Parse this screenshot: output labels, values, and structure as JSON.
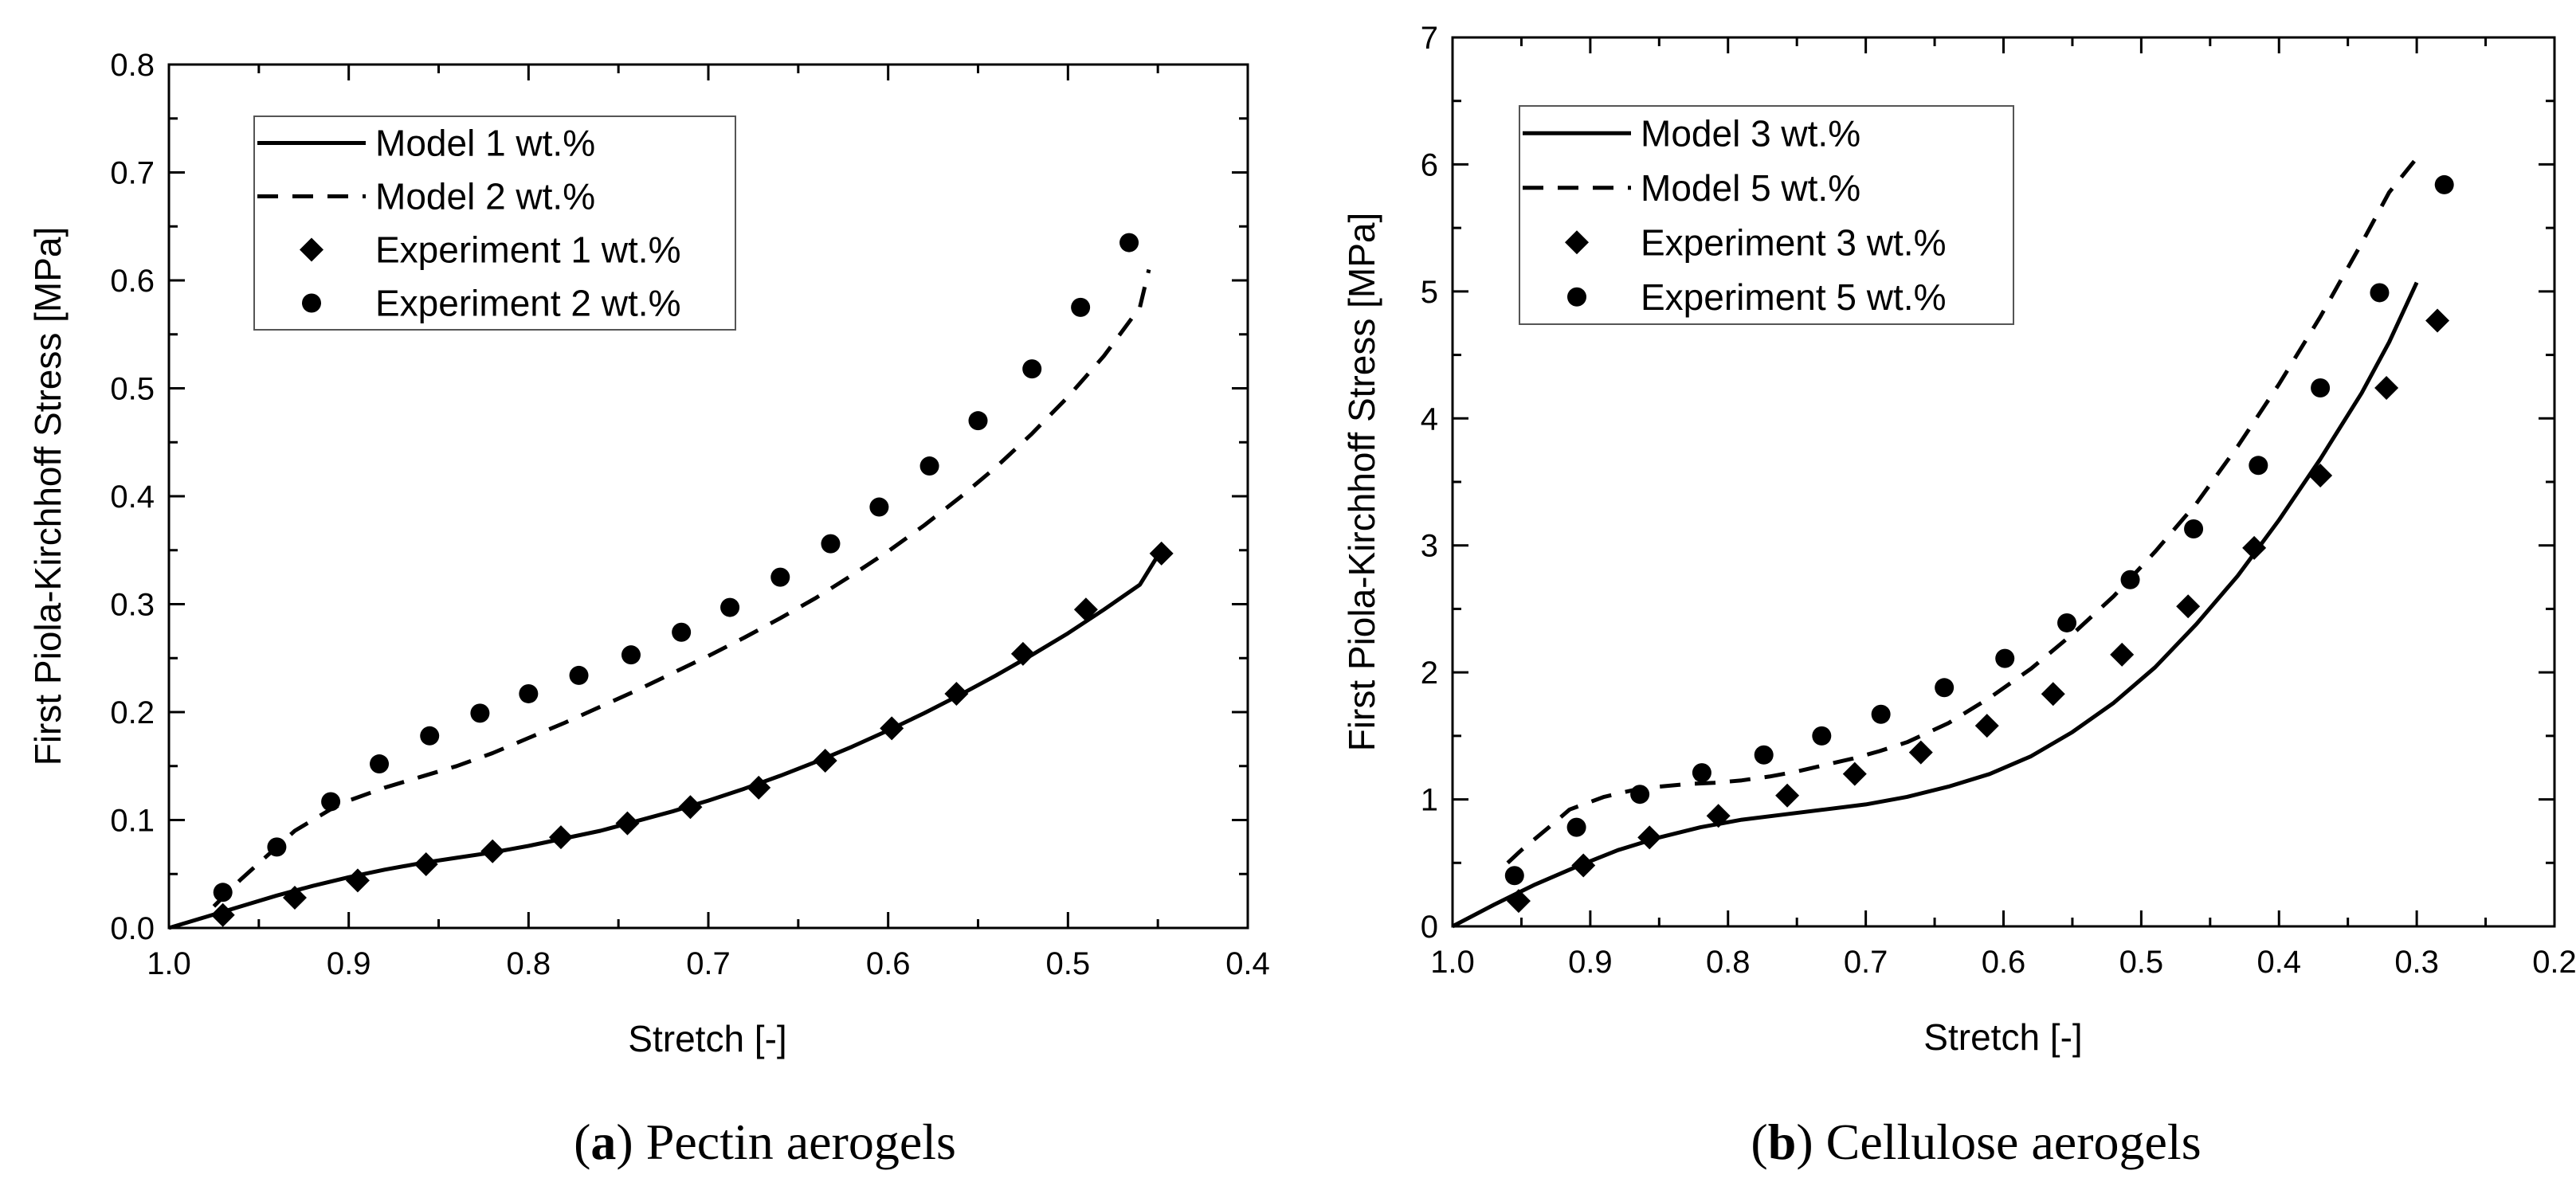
{
  "chart_data": [
    {
      "type": "line",
      "title": "",
      "xlabel": "Stretch [-]",
      "ylabel": "First Piola-Kirchhoff Stress [MPa]",
      "xlim": [
        1.0,
        0.4
      ],
      "ylim": [
        0.0,
        0.8
      ],
      "x_ticks": [
        "1.0",
        "0.9",
        "0.8",
        "0.7",
        "0.6",
        "0.5",
        "0.4"
      ],
      "y_ticks": [
        "0.0",
        "0.1",
        "0.2",
        "0.3",
        "0.4",
        "0.5",
        "0.6",
        "0.7",
        "0.8"
      ],
      "legend_position": "top-left",
      "caption": {
        "letter": "a",
        "open": "(",
        "close": ")",
        "text": " Pectin aerogels"
      },
      "series": [
        {
          "name": "Model 1 wt.%",
          "kind": "line",
          "style": "solid",
          "x": [
            1.0,
            0.98,
            0.96,
            0.94,
            0.92,
            0.9,
            0.88,
            0.86,
            0.84,
            0.82,
            0.8,
            0.78,
            0.76,
            0.74,
            0.72,
            0.7,
            0.68,
            0.66,
            0.64,
            0.62,
            0.6,
            0.58,
            0.56,
            0.54,
            0.52,
            0.5,
            0.48,
            0.46,
            0.45
          ],
          "y": [
            0.0,
            0.01,
            0.02,
            0.03,
            0.039,
            0.047,
            0.054,
            0.06,
            0.065,
            0.07,
            0.076,
            0.083,
            0.09,
            0.099,
            0.108,
            0.118,
            0.129,
            0.141,
            0.154,
            0.168,
            0.183,
            0.199,
            0.216,
            0.234,
            0.253,
            0.273,
            0.295,
            0.318,
            0.345
          ]
        },
        {
          "name": "Model 2 wt.%",
          "kind": "line",
          "style": "dashed",
          "x": [
            0.975,
            0.96,
            0.95,
            0.94,
            0.93,
            0.92,
            0.91,
            0.9,
            0.88,
            0.86,
            0.84,
            0.82,
            0.8,
            0.78,
            0.76,
            0.74,
            0.72,
            0.7,
            0.68,
            0.66,
            0.64,
            0.62,
            0.6,
            0.58,
            0.56,
            0.54,
            0.52,
            0.5,
            0.48,
            0.46,
            0.455
          ],
          "y": [
            0.02,
            0.045,
            0.06,
            0.075,
            0.09,
            0.1,
            0.11,
            0.118,
            0.13,
            0.14,
            0.15,
            0.162,
            0.176,
            0.19,
            0.205,
            0.22,
            0.236,
            0.252,
            0.269,
            0.287,
            0.306,
            0.327,
            0.349,
            0.373,
            0.399,
            0.427,
            0.458,
            0.492,
            0.53,
            0.575,
            0.61
          ]
        },
        {
          "name": "Experiment 1 wt.%",
          "kind": "scatter",
          "marker": "diamond",
          "x": [
            0.97,
            0.93,
            0.895,
            0.857,
            0.82,
            0.782,
            0.745,
            0.71,
            0.672,
            0.635,
            0.598,
            0.562,
            0.525,
            0.49,
            0.448
          ],
          "y": [
            0.012,
            0.028,
            0.044,
            0.059,
            0.071,
            0.084,
            0.097,
            0.112,
            0.13,
            0.155,
            0.185,
            0.217,
            0.254,
            0.295,
            0.347
          ]
        },
        {
          "name": "Experiment 2 wt.%",
          "kind": "scatter",
          "marker": "circle",
          "x": [
            0.97,
            0.94,
            0.91,
            0.883,
            0.855,
            0.827,
            0.8,
            0.772,
            0.743,
            0.715,
            0.688,
            0.66,
            0.632,
            0.605,
            0.577,
            0.55,
            0.52,
            0.493,
            0.466
          ],
          "y": [
            0.033,
            0.075,
            0.117,
            0.152,
            0.178,
            0.199,
            0.217,
            0.234,
            0.253,
            0.274,
            0.297,
            0.325,
            0.356,
            0.39,
            0.428,
            0.47,
            0.518,
            0.575,
            0.635
          ]
        }
      ]
    },
    {
      "type": "line",
      "title": "",
      "xlabel": "Stretch [-]",
      "ylabel": "First Piola-Kirchhoff Stress [MPa]",
      "xlim": [
        1.0,
        0.2
      ],
      "ylim": [
        0,
        7
      ],
      "x_ticks": [
        "1.0",
        "0.9",
        "0.8",
        "0.7",
        "0.6",
        "0.5",
        "0.4",
        "0.3",
        "0.2"
      ],
      "y_ticks": [
        "0",
        "1",
        "2",
        "3",
        "4",
        "5",
        "6",
        "7"
      ],
      "legend_position": "top-left",
      "caption": {
        "letter": "b",
        "open": "(",
        "close": ")",
        "text": " Cellulose aerogels"
      },
      "series": [
        {
          "name": "Model 3 wt.%",
          "kind": "line",
          "style": "solid",
          "x": [
            1.0,
            0.97,
            0.94,
            0.91,
            0.88,
            0.85,
            0.82,
            0.79,
            0.76,
            0.73,
            0.7,
            0.67,
            0.64,
            0.61,
            0.58,
            0.55,
            0.52,
            0.49,
            0.46,
            0.43,
            0.4,
            0.37,
            0.34,
            0.32,
            0.3
          ],
          "y": [
            0.0,
            0.17,
            0.33,
            0.47,
            0.6,
            0.7,
            0.78,
            0.84,
            0.88,
            0.92,
            0.96,
            1.02,
            1.1,
            1.2,
            1.34,
            1.53,
            1.76,
            2.04,
            2.38,
            2.76,
            3.2,
            3.68,
            4.2,
            4.6,
            5.07
          ]
        },
        {
          "name": "Model 5 wt.%",
          "kind": "line",
          "style": "dashed",
          "x": [
            0.96,
            0.95,
            0.93,
            0.915,
            0.9,
            0.89,
            0.87,
            0.85,
            0.83,
            0.81,
            0.79,
            0.77,
            0.75,
            0.73,
            0.71,
            0.69,
            0.67,
            0.64,
            0.61,
            0.58,
            0.55,
            0.52,
            0.49,
            0.46,
            0.43,
            0.4,
            0.37,
            0.34,
            0.32,
            0.3
          ],
          "y": [
            0.5,
            0.6,
            0.78,
            0.92,
            0.98,
            1.02,
            1.07,
            1.1,
            1.12,
            1.13,
            1.15,
            1.18,
            1.22,
            1.27,
            1.32,
            1.38,
            1.45,
            1.6,
            1.8,
            2.03,
            2.3,
            2.6,
            2.95,
            3.33,
            3.78,
            4.27,
            4.8,
            5.38,
            5.78,
            6.05
          ]
        },
        {
          "name": "Experiment 3 wt.%",
          "kind": "scatter",
          "marker": "diamond",
          "x": [
            0.952,
            0.905,
            0.857,
            0.807,
            0.757,
            0.708,
            0.66,
            0.612,
            0.564,
            0.514,
            0.466,
            0.418,
            0.37,
            0.322,
            0.285
          ],
          "y": [
            0.2,
            0.48,
            0.7,
            0.87,
            1.03,
            1.2,
            1.37,
            1.58,
            1.83,
            2.14,
            2.52,
            2.98,
            3.55,
            4.24,
            4.77
          ]
        },
        {
          "name": "Experiment 5 wt.%",
          "kind": "scatter",
          "marker": "circle",
          "x": [
            0.955,
            0.91,
            0.864,
            0.819,
            0.774,
            0.732,
            0.689,
            0.643,
            0.599,
            0.554,
            0.508,
            0.462,
            0.415,
            0.37,
            0.327,
            0.28
          ],
          "y": [
            0.4,
            0.78,
            1.04,
            1.21,
            1.35,
            1.5,
            1.67,
            1.88,
            2.11,
            2.39,
            2.73,
            3.13,
            3.63,
            4.24,
            4.99,
            5.84
          ]
        }
      ]
    }
  ]
}
